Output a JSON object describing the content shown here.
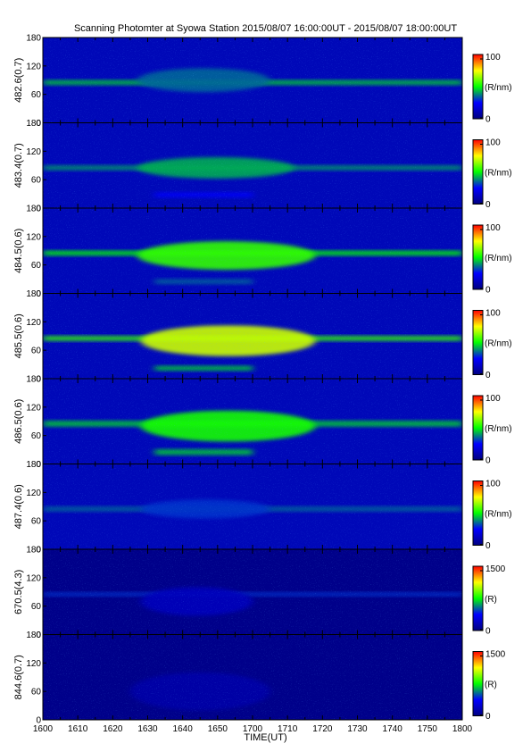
{
  "chart_data": {
    "type": "heatmap",
    "title": "Scanning Photomter at Syowa Station 2015/08/07 16:00:00UT - 2015/08/07 18:00:00UT",
    "xlabel": "TIME(UT)",
    "x_ticks": [
      "1600",
      "1610",
      "1620",
      "1630",
      "1640",
      "1650",
      "1700",
      "1710",
      "1720",
      "1730",
      "1740",
      "1750",
      "1800"
    ],
    "y_ticks": [
      "0",
      "60",
      "120",
      "180"
    ],
    "ylim": [
      0,
      180
    ],
    "colormap": [
      "#00007f",
      "#0000ff",
      "#00ff00",
      "#ffff00",
      "#ff0000"
    ],
    "panels": [
      {
        "ylabel": "482.6(0.7)",
        "colorbar": {
          "ticks": [
            "0",
            "100"
          ],
          "unit": "(R/nm)",
          "range": [
            0,
            100
          ]
        },
        "features": [
          {
            "kind": "band",
            "t_start": "1600",
            "t_end": "1800",
            "y_center": 85,
            "y_width": 10,
            "intensity": 0.45
          },
          {
            "kind": "blob",
            "t_start": "1627",
            "t_end": "1705",
            "y_center": 90,
            "y_width": 50,
            "intensity": 0.35
          }
        ]
      },
      {
        "ylabel": "483.4(0.7)",
        "colorbar": {
          "ticks": [
            "0",
            "100"
          ],
          "unit": "(R/nm)",
          "range": [
            0,
            100
          ]
        },
        "features": [
          {
            "kind": "band",
            "t_start": "1600",
            "t_end": "1800",
            "y_center": 85,
            "y_width": 10,
            "intensity": 0.4
          },
          {
            "kind": "blob",
            "t_start": "1627",
            "t_end": "1712",
            "y_center": 85,
            "y_width": 45,
            "intensity": 0.42
          },
          {
            "kind": "band",
            "t_start": "1632",
            "t_end": "1700",
            "y_center": 28,
            "y_width": 10,
            "intensity": 0.25
          }
        ]
      },
      {
        "ylabel": "484.5(0.6)",
        "colorbar": {
          "ticks": [
            "0",
            "100"
          ],
          "unit": "(R/nm)",
          "range": [
            0,
            100
          ]
        },
        "features": [
          {
            "kind": "band",
            "t_start": "1600",
            "t_end": "1800",
            "y_center": 85,
            "y_width": 10,
            "intensity": 0.5
          },
          {
            "kind": "blob",
            "t_start": "1627",
            "t_end": "1718",
            "y_center": 80,
            "y_width": 60,
            "intensity": 0.55
          },
          {
            "kind": "band",
            "t_start": "1632",
            "t_end": "1700",
            "y_center": 25,
            "y_width": 10,
            "intensity": 0.35
          }
        ]
      },
      {
        "ylabel": "485.5(0.6)",
        "colorbar": {
          "ticks": [
            "0",
            "100"
          ],
          "unit": "(R/nm)",
          "range": [
            0,
            100
          ]
        },
        "features": [
          {
            "kind": "band",
            "t_start": "1600",
            "t_end": "1800",
            "y_center": 85,
            "y_width": 10,
            "intensity": 0.55
          },
          {
            "kind": "blob",
            "t_start": "1628",
            "t_end": "1718",
            "y_center": 80,
            "y_width": 65,
            "intensity": 0.7
          },
          {
            "kind": "band",
            "t_start": "1632",
            "t_end": "1700",
            "y_center": 22,
            "y_width": 10,
            "intensity": 0.45
          }
        ]
      },
      {
        "ylabel": "486.5(0.6)",
        "colorbar": {
          "ticks": [
            "0",
            "100"
          ],
          "unit": "(R/nm)",
          "range": [
            0,
            100
          ]
        },
        "features": [
          {
            "kind": "band",
            "t_start": "1600",
            "t_end": "1800",
            "y_center": 85,
            "y_width": 12,
            "intensity": 0.45
          },
          {
            "kind": "blob",
            "t_start": "1628",
            "t_end": "1718",
            "y_center": 80,
            "y_width": 65,
            "intensity": 0.52
          },
          {
            "kind": "band",
            "t_start": "1632",
            "t_end": "1700",
            "y_center": 25,
            "y_width": 12,
            "intensity": 0.45
          }
        ]
      },
      {
        "ylabel": "487.4(0.6)",
        "colorbar": {
          "ticks": [
            "0",
            "100"
          ],
          "unit": "(R/nm)",
          "range": [
            0,
            100
          ]
        },
        "features": [
          {
            "kind": "band",
            "t_start": "1600",
            "t_end": "1800",
            "y_center": 85,
            "y_width": 10,
            "intensity": 0.35
          },
          {
            "kind": "blob",
            "t_start": "1628",
            "t_end": "1705",
            "y_center": 85,
            "y_width": 40,
            "intensity": 0.3
          }
        ]
      },
      {
        "ylabel": "670.5(4.3)",
        "colorbar": {
          "ticks": [
            "0",
            "1500"
          ],
          "unit": "(R)",
          "range": [
            0,
            1500
          ]
        },
        "features": [
          {
            "kind": "band",
            "t_start": "1600",
            "t_end": "1800",
            "y_center": 85,
            "y_width": 8,
            "intensity": 0.3
          },
          {
            "kind": "blob",
            "t_start": "1628",
            "t_end": "1700",
            "y_center": 70,
            "y_width": 60,
            "intensity": 0.12
          }
        ]
      },
      {
        "ylabel": "844.6(0.7)",
        "colorbar": {
          "ticks": [
            "0",
            "1500"
          ],
          "unit": "(R)",
          "range": [
            0,
            1500
          ]
        },
        "features": [
          {
            "kind": "blob",
            "t_start": "1625",
            "t_end": "1705",
            "y_center": 60,
            "y_width": 80,
            "intensity": 0.08
          }
        ]
      }
    ]
  }
}
